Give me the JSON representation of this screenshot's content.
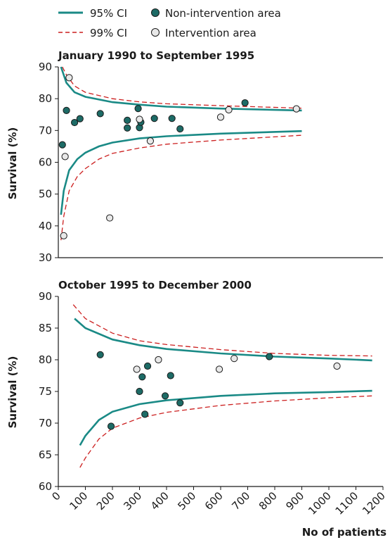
{
  "legend": {
    "ci95": "95% CI",
    "ci99": "99% CI",
    "non_intervention": "Non-intervention area",
    "intervention": "Intervention area"
  },
  "colors": {
    "ci95": "#1a8a86",
    "ci99": "#cc1f1f",
    "non_intervention_fill": "#1d6b66",
    "intervention_fill": "#e8e8e8",
    "axis": "#1a1a1a"
  },
  "chart_data": [
    {
      "type": "scatter",
      "title": "January 1990 to September 1995",
      "xlabel": "",
      "ylabel": "Survival (%)",
      "xlim": [
        0,
        1200
      ],
      "ylim": [
        30,
        90
      ],
      "yticks": [
        30,
        40,
        50,
        60,
        70,
        80,
        90
      ],
      "series": [
        {
          "name": "Non-intervention area",
          "points": [
            [
              15,
              65.5
            ],
            [
              30,
              76.3
            ],
            [
              60,
              72.5
            ],
            [
              80,
              73.7
            ],
            [
              155,
              75.3
            ],
            [
              255,
              73.2
            ],
            [
              255,
              70.8
            ],
            [
              295,
              76.9
            ],
            [
              300,
              70.9
            ],
            [
              305,
              72.6
            ],
            [
              355,
              73.8
            ],
            [
              420,
              73.8
            ],
            [
              450,
              70.5
            ],
            [
              690,
              78.7
            ]
          ]
        },
        {
          "name": "Intervention area",
          "points": [
            [
              20,
              36.9
            ],
            [
              25,
              61.8
            ],
            [
              40,
              86.6
            ],
            [
              190,
              42.5
            ],
            [
              300,
              73.5
            ],
            [
              340,
              66.7
            ],
            [
              600,
              74.2
            ],
            [
              630,
              76.5
            ],
            [
              880,
              76.8
            ]
          ]
        }
      ],
      "ci95_upper": [
        [
          10,
          90
        ],
        [
          30,
          85
        ],
        [
          60,
          82
        ],
        [
          100,
          80.6
        ],
        [
          200,
          78.9
        ],
        [
          300,
          78.1
        ],
        [
          400,
          77.5
        ],
        [
          600,
          76.9
        ],
        [
          900,
          76.3
        ]
      ],
      "ci95_lower": [
        [
          10,
          43.5
        ],
        [
          20,
          51
        ],
        [
          40,
          57.5
        ],
        [
          70,
          61
        ],
        [
          100,
          63
        ],
        [
          150,
          65
        ],
        [
          200,
          66.2
        ],
        [
          300,
          67.5
        ],
        [
          400,
          68.2
        ],
        [
          600,
          69
        ],
        [
          900,
          69.8
        ]
      ],
      "ci99_upper": [
        [
          15,
          90
        ],
        [
          30,
          87.5
        ],
        [
          60,
          84
        ],
        [
          100,
          82
        ],
        [
          200,
          80
        ],
        [
          300,
          79
        ],
        [
          400,
          78.4
        ],
        [
          600,
          77.8
        ],
        [
          900,
          77
        ]
      ],
      "ci99_lower": [
        [
          10,
          35.5
        ],
        [
          20,
          43
        ],
        [
          40,
          51
        ],
        [
          70,
          55.5
        ],
        [
          100,
          58
        ],
        [
          150,
          61
        ],
        [
          200,
          62.8
        ],
        [
          300,
          64.5
        ],
        [
          400,
          65.7
        ],
        [
          600,
          67
        ],
        [
          900,
          68.5
        ]
      ]
    },
    {
      "type": "scatter",
      "title": "October 1995 to December 2000",
      "xlabel": "No of patients",
      "ylabel": "Survival (%)",
      "xlim": [
        0,
        1200
      ],
      "ylim": [
        60,
        90
      ],
      "yticks": [
        60,
        65,
        70,
        75,
        80,
        85,
        90
      ],
      "xticks": [
        0,
        100,
        200,
        300,
        400,
        500,
        600,
        700,
        800,
        900,
        1000,
        1100,
        1200
      ],
      "series": [
        {
          "name": "Non-intervention area",
          "points": [
            [
              155,
              80.8
            ],
            [
              195,
              69.5
            ],
            [
              300,
              75
            ],
            [
              310,
              77.3
            ],
            [
              320,
              71.4
            ],
            [
              330,
              79
            ],
            [
              395,
              74.3
            ],
            [
              415,
              77.5
            ],
            [
              450,
              73.2
            ],
            [
              780,
              80.5
            ]
          ]
        },
        {
          "name": "Intervention area",
          "points": [
            [
              290,
              78.5
            ],
            [
              370,
              80
            ],
            [
              595,
              78.5
            ],
            [
              650,
              80.2
            ],
            [
              1030,
              79
            ]
          ]
        }
      ],
      "ci95_upper": [
        [
          60,
          86.5
        ],
        [
          100,
          85
        ],
        [
          200,
          83.2
        ],
        [
          300,
          82.3
        ],
        [
          400,
          81.7
        ],
        [
          600,
          81
        ],
        [
          800,
          80.5
        ],
        [
          1000,
          80.2
        ],
        [
          1160,
          79.9
        ]
      ],
      "ci95_lower": [
        [
          80,
          66.5
        ],
        [
          100,
          68
        ],
        [
          150,
          70.5
        ],
        [
          200,
          71.8
        ],
        [
          300,
          73
        ],
        [
          400,
          73.6
        ],
        [
          600,
          74.3
        ],
        [
          800,
          74.7
        ],
        [
          1000,
          74.9
        ],
        [
          1160,
          75.1
        ]
      ],
      "ci99_upper": [
        [
          55,
          88.7
        ],
        [
          100,
          86.5
        ],
        [
          200,
          84.2
        ],
        [
          300,
          83
        ],
        [
          400,
          82.4
        ],
        [
          600,
          81.6
        ],
        [
          800,
          81
        ],
        [
          1000,
          80.7
        ],
        [
          1160,
          80.6
        ]
      ],
      "ci99_lower": [
        [
          80,
          63
        ],
        [
          100,
          64.5
        ],
        [
          150,
          67.5
        ],
        [
          200,
          69.2
        ],
        [
          300,
          70.8
        ],
        [
          400,
          71.7
        ],
        [
          600,
          72.8
        ],
        [
          800,
          73.5
        ],
        [
          1000,
          74
        ],
        [
          1160,
          74.3
        ]
      ]
    }
  ]
}
